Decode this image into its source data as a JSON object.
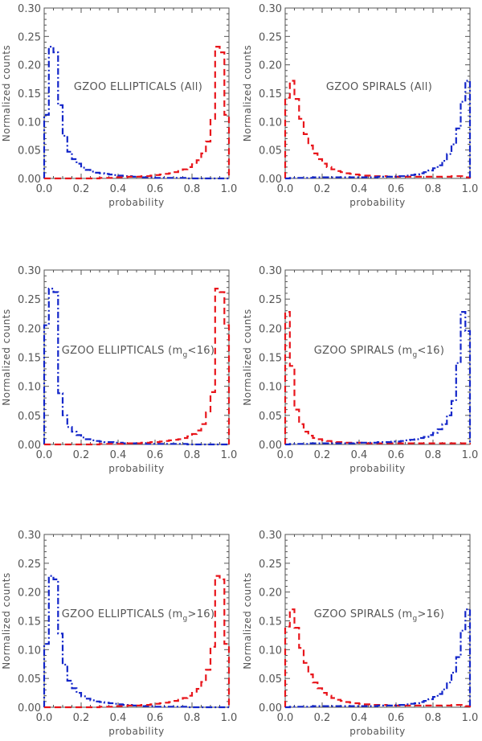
{
  "colors": {
    "red_dashed": "#e8151b",
    "blue_dashdot": "#1326c9",
    "axes": "#555555"
  },
  "chart_data": [
    {
      "type": "histogram",
      "title": "GZOO ELLIPTICALS (All)",
      "title_parts": {
        "pre": "GZOO ELLIPTICALS (All)",
        "sub": "",
        "post": ""
      },
      "xlabel": "probability",
      "ylabel": "Normalized counts",
      "xlim": [
        0,
        1
      ],
      "ylim": [
        0,
        0.3
      ],
      "xticks": [
        "0.0",
        "0.2",
        "0.4",
        "0.6",
        "0.8",
        "1.0"
      ],
      "yticks": [
        "0.00",
        "0.05",
        "0.10",
        "0.15",
        "0.20",
        "0.25",
        "0.30"
      ],
      "bin_width": 0.025,
      "series": [
        {
          "name": "blue dash-dot",
          "style": "dashdot",
          "values": [
            0.112,
            0.232,
            0.222,
            0.129,
            0.075,
            0.047,
            0.034,
            0.026,
            0.019,
            0.015,
            0.012,
            0.01,
            0.009,
            0.008,
            0.007,
            0.006,
            0.005,
            0.004,
            0.004,
            0.003,
            0.003,
            0.002,
            0.002,
            0.002,
            0.001,
            0.001,
            0.001,
            0.001,
            0.001,
            0.001,
            0.001,
            0,
            0,
            0,
            0,
            0,
            0,
            0,
            0,
            0
          ]
        },
        {
          "name": "red dashed",
          "style": "dashed",
          "values": [
            0,
            0,
            0,
            0,
            0,
            0,
            0,
            0,
            0,
            0,
            0,
            0,
            0.001,
            0.001,
            0.001,
            0.002,
            0.002,
            0.002,
            0.003,
            0.003,
            0.003,
            0.004,
            0.004,
            0.005,
            0.006,
            0.007,
            0.008,
            0.009,
            0.011,
            0.013,
            0.016,
            0.02,
            0.025,
            0.032,
            0.044,
            0.065,
            0.105,
            0.232,
            0.222,
            0.112
          ]
        }
      ]
    },
    {
      "type": "histogram",
      "title": "GZOO SPIRALS (All)",
      "title_parts": {
        "pre": "GZOO SPIRALS (All)",
        "sub": "",
        "post": ""
      },
      "xlabel": "probability",
      "ylabel": "Normalized counts",
      "xlim": [
        0,
        1
      ],
      "ylim": [
        0,
        0.3
      ],
      "xticks": [
        "0.0",
        "0.2",
        "0.4",
        "0.6",
        "0.8",
        "1.0"
      ],
      "yticks": [
        "0.00",
        "0.05",
        "0.10",
        "0.15",
        "0.20",
        "0.25",
        "0.30"
      ],
      "bin_width": 0.025,
      "series": [
        {
          "name": "red dashed",
          "style": "dashed",
          "values": [
            0.142,
            0.172,
            0.14,
            0.105,
            0.078,
            0.058,
            0.044,
            0.034,
            0.026,
            0.02,
            0.016,
            0.013,
            0.011,
            0.009,
            0.008,
            0.007,
            0.006,
            0.005,
            0.005,
            0.004,
            0.004,
            0.004,
            0.003,
            0.003,
            0.003,
            0.003,
            0.003,
            0.003,
            0.003,
            0.003,
            0.003,
            0.003,
            0.003,
            0.003,
            0.003,
            0.003,
            0.004,
            0.004,
            0.004,
            0.002
          ]
        },
        {
          "name": "blue dash-dot",
          "style": "dashdot",
          "values": [
            0,
            0.001,
            0.001,
            0.001,
            0.001,
            0.001,
            0.002,
            0.002,
            0.002,
            0.002,
            0.002,
            0.002,
            0.002,
            0.002,
            0.002,
            0.002,
            0.002,
            0.002,
            0.002,
            0.002,
            0.003,
            0.003,
            0.003,
            0.003,
            0.004,
            0.004,
            0.005,
            0.006,
            0.007,
            0.009,
            0.011,
            0.014,
            0.018,
            0.023,
            0.031,
            0.043,
            0.06,
            0.088,
            0.135,
            0.172
          ]
        }
      ]
    },
    {
      "type": "histogram",
      "title": "GZOO ELLIPTICALS (mg<16)",
      "title_parts": {
        "pre": "GZOO ELLIPTICALS (m",
        "sub": "g",
        "post": "<16)"
      },
      "xlabel": "probability",
      "ylabel": "Normalized counts",
      "xlim": [
        0,
        1
      ],
      "ylim": [
        0,
        0.3
      ],
      "xticks": [
        "0.0",
        "0.2",
        "0.4",
        "0.6",
        "0.8",
        "1.0"
      ],
      "yticks": [
        "0.00",
        "0.05",
        "0.10",
        "0.15",
        "0.20",
        "0.25",
        "0.30"
      ],
      "bin_width": 0.025,
      "series": [
        {
          "name": "blue dash-dot",
          "style": "dashdot",
          "values": [
            0.205,
            0.268,
            0.262,
            0.088,
            0.05,
            0.03,
            0.022,
            0.016,
            0.012,
            0.009,
            0.007,
            0.006,
            0.005,
            0.004,
            0.004,
            0.003,
            0.003,
            0.002,
            0.002,
            0.002,
            0.002,
            0.002,
            0.001,
            0.001,
            0.001,
            0.001,
            0.001,
            0.001,
            0.001,
            0.001,
            0.001,
            0,
            0,
            0,
            0,
            0,
            0,
            0,
            0,
            0
          ]
        },
        {
          "name": "red dashed",
          "style": "dashed",
          "values": [
            0,
            0,
            0,
            0,
            0,
            0,
            0,
            0,
            0,
            0,
            0,
            0,
            0.001,
            0.001,
            0.001,
            0.001,
            0.001,
            0.002,
            0.002,
            0.002,
            0.002,
            0.003,
            0.003,
            0.004,
            0.004,
            0.005,
            0.006,
            0.007,
            0.008,
            0.009,
            0.011,
            0.014,
            0.018,
            0.024,
            0.035,
            0.055,
            0.09,
            0.268,
            0.262,
            0.205
          ]
        }
      ]
    },
    {
      "type": "histogram",
      "title": "GZOO SPIRALS (mg<16)",
      "title_parts": {
        "pre": "GZOO SPIRALS (m",
        "sub": "g",
        "post": "<16)"
      },
      "xlabel": "probability",
      "ylabel": "Normalized counts",
      "xlim": [
        0,
        1
      ],
      "ylim": [
        0,
        0.3
      ],
      "xticks": [
        "0.0",
        "0.2",
        "0.4",
        "0.6",
        "0.8",
        "1.0"
      ],
      "yticks": [
        "0.00",
        "0.05",
        "0.10",
        "0.15",
        "0.20",
        "0.25",
        "0.30"
      ],
      "bin_width": 0.025,
      "series": [
        {
          "name": "red dashed",
          "style": "dashed",
          "values": [
            0.228,
            0.135,
            0.06,
            0.035,
            0.022,
            0.015,
            0.011,
            0.009,
            0.007,
            0.006,
            0.005,
            0.004,
            0.004,
            0.003,
            0.003,
            0.003,
            0.003,
            0.002,
            0.002,
            0.002,
            0.002,
            0.002,
            0.002,
            0.002,
            0.002,
            0.002,
            0.002,
            0.002,
            0.002,
            0.002,
            0.002,
            0.002,
            0.002,
            0.002,
            0.002,
            0.002,
            0.002,
            0.002,
            0.002,
            0.001
          ]
        },
        {
          "name": "blue dash-dot",
          "style": "dashdot",
          "values": [
            0,
            0.001,
            0.001,
            0.001,
            0.001,
            0.002,
            0.002,
            0.002,
            0.002,
            0.002,
            0.002,
            0.002,
            0.002,
            0.002,
            0.002,
            0.003,
            0.003,
            0.003,
            0.003,
            0.003,
            0.004,
            0.004,
            0.004,
            0.005,
            0.005,
            0.006,
            0.007,
            0.008,
            0.009,
            0.011,
            0.013,
            0.016,
            0.02,
            0.026,
            0.035,
            0.05,
            0.075,
            0.14,
            0.228,
            0.195
          ]
        }
      ]
    },
    {
      "type": "histogram",
      "title": "GZOO ELLIPTICALS (mg>16)",
      "title_parts": {
        "pre": "GZOO ELLIPTICALS (m",
        "sub": "g",
        "post": ">16)"
      },
      "xlabel": "probability",
      "ylabel": "Normalized counts",
      "xlim": [
        0,
        1
      ],
      "ylim": [
        0,
        0.3
      ],
      "xticks": [
        "0.0",
        "0.2",
        "0.4",
        "0.6",
        "0.8",
        "1.0"
      ],
      "yticks": [
        "0.00",
        "0.05",
        "0.10",
        "0.15",
        "0.20",
        "0.25",
        "0.30"
      ],
      "bin_width": 0.025,
      "series": [
        {
          "name": "blue dash-dot",
          "style": "dashdot",
          "values": [
            0.11,
            0.228,
            0.222,
            0.128,
            0.074,
            0.046,
            0.033,
            0.025,
            0.019,
            0.015,
            0.012,
            0.01,
            0.009,
            0.008,
            0.007,
            0.006,
            0.005,
            0.004,
            0.004,
            0.003,
            0.003,
            0.002,
            0.002,
            0.002,
            0.001,
            0.001,
            0.001,
            0.001,
            0.001,
            0.001,
            0.001,
            0,
            0,
            0,
            0,
            0,
            0,
            0,
            0,
            0
          ]
        },
        {
          "name": "red dashed",
          "style": "dashed",
          "values": [
            0,
            0,
            0,
            0,
            0,
            0,
            0,
            0,
            0,
            0,
            0,
            0,
            0.001,
            0.001,
            0.001,
            0.002,
            0.002,
            0.002,
            0.003,
            0.003,
            0.003,
            0.004,
            0.004,
            0.005,
            0.006,
            0.007,
            0.008,
            0.009,
            0.011,
            0.013,
            0.016,
            0.02,
            0.025,
            0.032,
            0.044,
            0.065,
            0.105,
            0.228,
            0.222,
            0.11
          ]
        }
      ]
    },
    {
      "type": "histogram",
      "title": "GZOO SPIRALS (mg>16)",
      "title_parts": {
        "pre": "GZOO SPIRALS (m",
        "sub": "g",
        "post": ">16)"
      },
      "xlabel": "probability",
      "ylabel": "Normalized counts",
      "xlim": [
        0,
        1
      ],
      "ylim": [
        0,
        0.3
      ],
      "xticks": [
        "0.0",
        "0.2",
        "0.4",
        "0.6",
        "0.8",
        "1.0"
      ],
      "yticks": [
        "0.00",
        "0.05",
        "0.10",
        "0.15",
        "0.20",
        "0.25",
        "0.30"
      ],
      "bin_width": 0.025,
      "series": [
        {
          "name": "red dashed",
          "style": "dashed",
          "values": [
            0.14,
            0.17,
            0.138,
            0.103,
            0.077,
            0.057,
            0.043,
            0.033,
            0.025,
            0.02,
            0.016,
            0.013,
            0.011,
            0.009,
            0.008,
            0.007,
            0.006,
            0.005,
            0.005,
            0.004,
            0.004,
            0.004,
            0.003,
            0.003,
            0.003,
            0.003,
            0.003,
            0.003,
            0.003,
            0.003,
            0.003,
            0.003,
            0.003,
            0.003,
            0.003,
            0.003,
            0.004,
            0.004,
            0.004,
            0.002
          ]
        },
        {
          "name": "blue dash-dot",
          "style": "dashdot",
          "values": [
            0,
            0.001,
            0.001,
            0.001,
            0.001,
            0.001,
            0.002,
            0.002,
            0.002,
            0.002,
            0.002,
            0.002,
            0.002,
            0.002,
            0.002,
            0.002,
            0.002,
            0.002,
            0.002,
            0.002,
            0.003,
            0.003,
            0.003,
            0.003,
            0.004,
            0.004,
            0.005,
            0.006,
            0.007,
            0.009,
            0.011,
            0.014,
            0.018,
            0.023,
            0.031,
            0.043,
            0.06,
            0.087,
            0.133,
            0.17
          ]
        }
      ]
    }
  ]
}
